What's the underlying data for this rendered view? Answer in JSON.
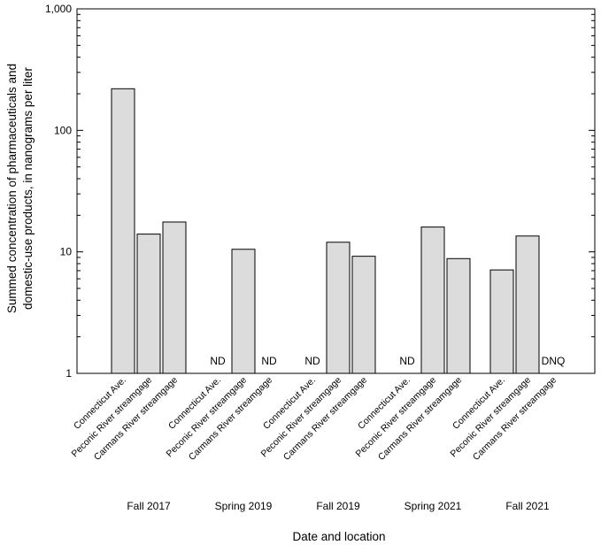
{
  "chart_data": {
    "type": "bar",
    "scale": "log",
    "xlabel": "Date and location",
    "ylabel_lines": [
      "Summed concentration of pharmaceuticals and",
      "domestic-use products, in nanograms per liter"
    ],
    "ylim": [
      1,
      1000
    ],
    "y_ticks": [
      {
        "value": 1,
        "label": "1"
      },
      {
        "value": 10,
        "label": "10"
      },
      {
        "value": 100,
        "label": "100"
      },
      {
        "value": 1000,
        "label": "1,000"
      }
    ],
    "groups": [
      {
        "label": "Fall 2017",
        "bars": [
          {
            "location": "Connecticut Ave.",
            "value": 220,
            "label": null
          },
          {
            "location": "Peconic River streamgage",
            "value": 14,
            "label": null
          },
          {
            "location": "Carmans River streamgage",
            "value": 17.6,
            "label": null
          }
        ]
      },
      {
        "label": "Spring 2019",
        "bars": [
          {
            "location": "Connecticut Ave.",
            "value": null,
            "label": "ND"
          },
          {
            "location": "Peconic River streamgage",
            "value": 10.5,
            "label": null
          },
          {
            "location": "Carmans River streamgage",
            "value": null,
            "label": "ND"
          }
        ]
      },
      {
        "label": "Fall 2019",
        "bars": [
          {
            "location": "Connecticut Ave.",
            "value": null,
            "label": "ND"
          },
          {
            "location": "Peconic River streamgage",
            "value": 12,
            "label": null
          },
          {
            "location": "Carmans River streamgage",
            "value": 9.2,
            "label": null
          }
        ]
      },
      {
        "label": "Spring 2021",
        "bars": [
          {
            "location": "Connecticut Ave.",
            "value": null,
            "label": "ND"
          },
          {
            "location": "Peconic River streamgage",
            "value": 16,
            "label": null
          },
          {
            "location": "Carmans River streamgage",
            "value": 8.8,
            "label": null
          }
        ]
      },
      {
        "label": "Fall 2021",
        "bars": [
          {
            "location": "Connecticut Ave.",
            "value": 7.1,
            "label": null
          },
          {
            "location": "Peconic River streamgage",
            "value": 13.5,
            "label": null
          },
          {
            "location": "Carmans River streamgage",
            "value": null,
            "label": "DNQ"
          }
        ]
      }
    ]
  }
}
